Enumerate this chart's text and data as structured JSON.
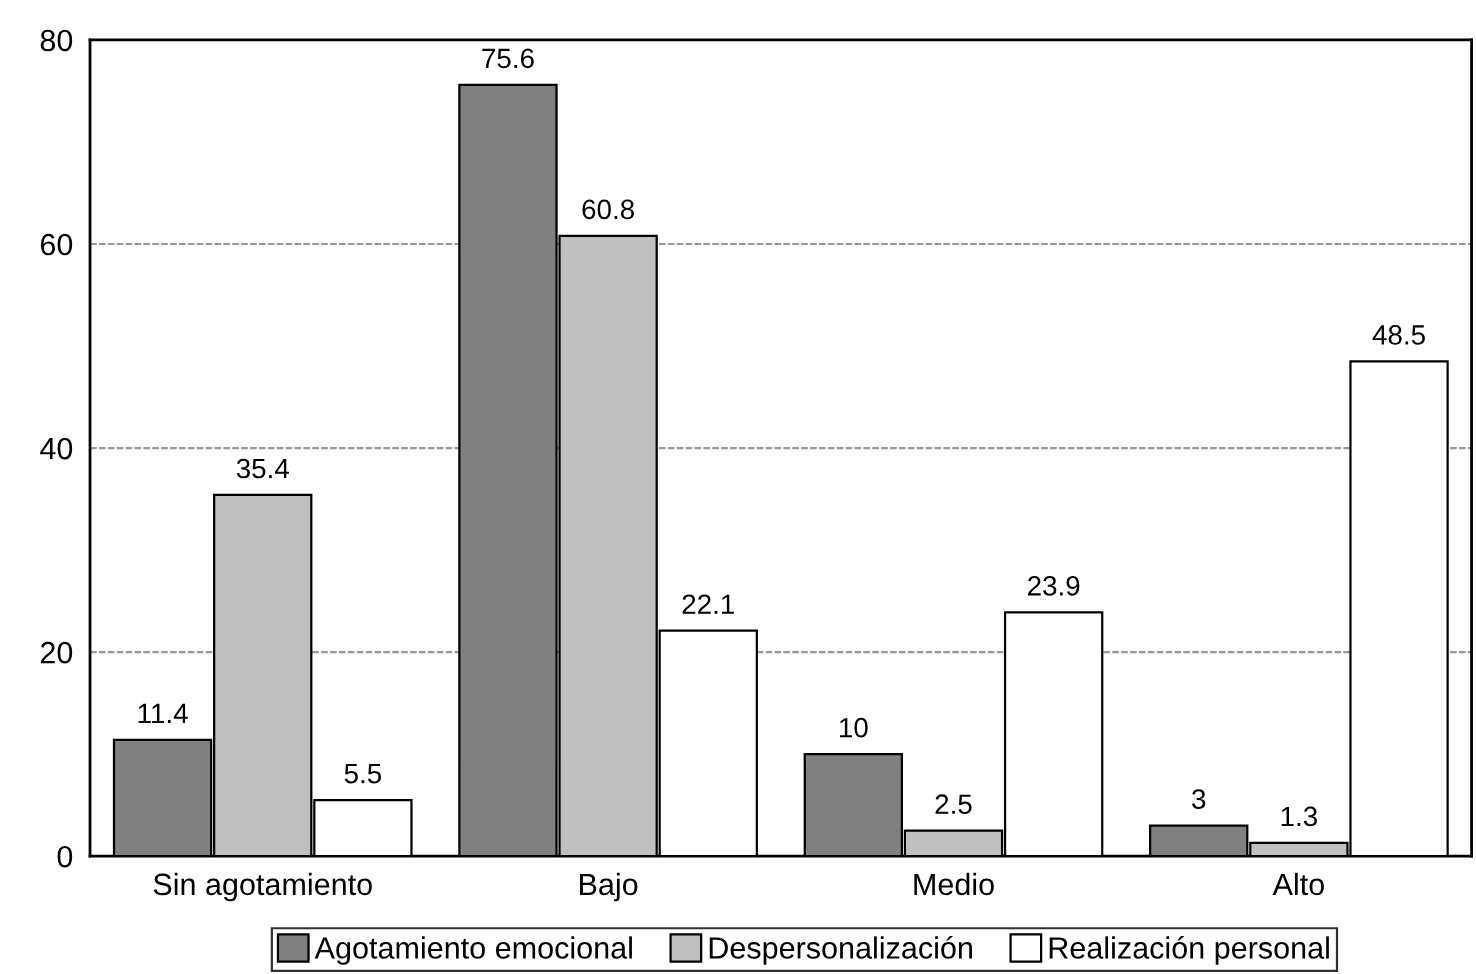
{
  "chart_data": {
    "type": "bar",
    "categories": [
      "Sin agotamiento",
      "Bajo",
      "Medio",
      "Alto"
    ],
    "series": [
      {
        "name": "Agotamiento emocional",
        "color": "#808080",
        "values": [
          11.4,
          75.6,
          10,
          3
        ]
      },
      {
        "name": "Despersonalización",
        "color": "#c0c0c0",
        "values": [
          35.4,
          60.8,
          2.5,
          1.3
        ]
      },
      {
        "name": "Realización personal",
        "color": "#ffffff",
        "values": [
          5.5,
          22.1,
          23.9,
          48.5
        ]
      }
    ],
    "ylim": [
      0,
      80
    ],
    "yticks": [
      0,
      20,
      40,
      60,
      80
    ],
    "grid": "y",
    "legend": "bottom",
    "data_labels": true
  }
}
